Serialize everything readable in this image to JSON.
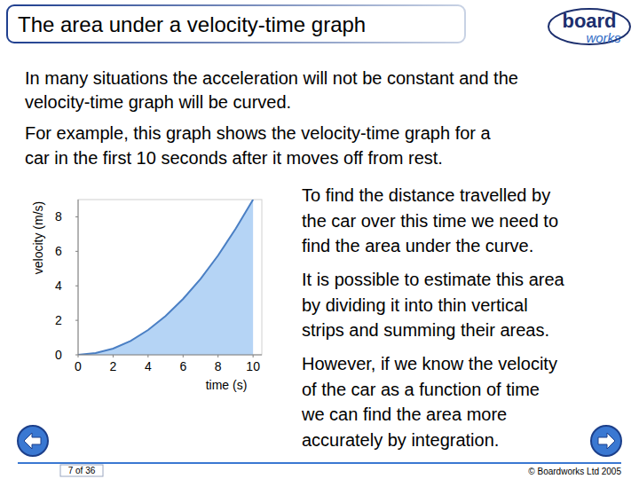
{
  "slide": {
    "title": "The area under a velocity-time graph",
    "logo": [
      "board",
      "works"
    ],
    "intro": [
      [
        "In many situations the acceleration will not be constant and the",
        "velocity-time graph will be curved."
      ],
      [
        "For example, this graph shows the velocity-time graph for a",
        "car in the first 10 seconds after it moves off from rest."
      ]
    ],
    "side_text": [
      [
        "To find the distance travelled by",
        "the car over this time we need to",
        "find the area under the curve."
      ],
      [
        "It is possible to estimate this area",
        "by dividing it into thin vertical",
        "strips and summing their areas."
      ],
      [
        "However, if we know the velocity",
        "of the car as a function of time",
        "we can find the area more",
        "accurately by integration."
      ]
    ],
    "page": "7 of 36",
    "copyright": "© Boardworks Ltd 2005"
  },
  "chart_data": {
    "type": "area",
    "x_label": "time (s)",
    "y_label": "velocity (m/s)",
    "x": [
      0,
      1,
      2,
      3,
      4,
      5,
      6,
      7,
      8,
      9,
      10
    ],
    "values": [
      0,
      0.1,
      0.36,
      0.8,
      1.44,
      2.25,
      3.24,
      4.4,
      5.76,
      7.3,
      9
    ],
    "color": "#4a7fc4",
    "xlim": [
      0,
      10.5
    ],
    "ylim": [
      0,
      9
    ],
    "xticks": [
      0,
      2,
      4,
      6,
      8,
      10
    ],
    "yticks": [
      0,
      2,
      4,
      6,
      8
    ]
  }
}
